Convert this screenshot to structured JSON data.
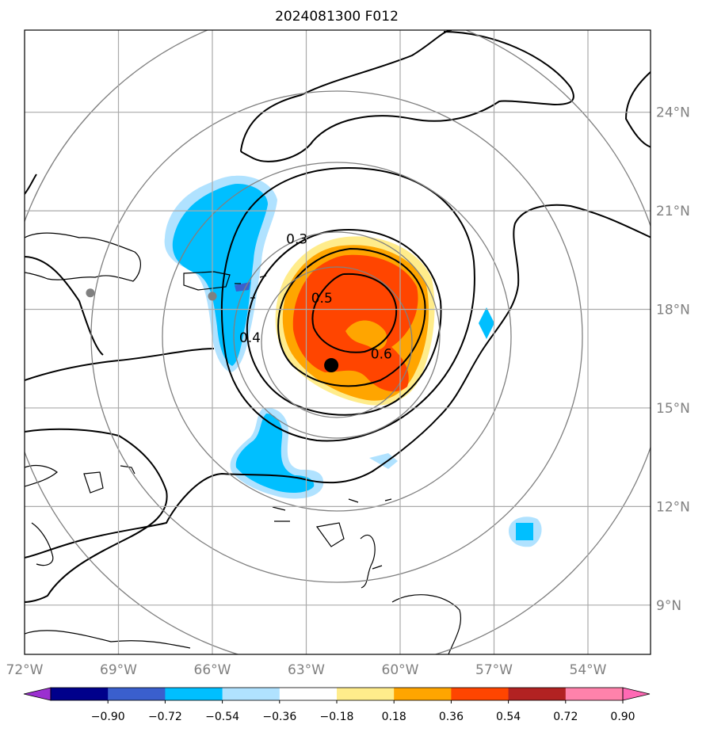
{
  "chart_data": {
    "type": "map",
    "title": "2024081300 F012",
    "lon_range": [
      -72,
      -52
    ],
    "lat_range": [
      7.5,
      26.5
    ],
    "lon_ticks": [
      {
        "value": -72,
        "label": "72°W"
      },
      {
        "value": -69,
        "label": "69°W"
      },
      {
        "value": -66,
        "label": "66°W"
      },
      {
        "value": -63,
        "label": "63°W"
      },
      {
        "value": -60,
        "label": "60°W"
      },
      {
        "value": -57,
        "label": "57°W"
      },
      {
        "value": -54,
        "label": "54°W"
      }
    ],
    "lat_ticks": [
      {
        "value": 9,
        "label": "9°N"
      },
      {
        "value": 12,
        "label": "12°N"
      },
      {
        "value": 15,
        "label": "15°N"
      },
      {
        "value": 18,
        "label": "18°N"
      },
      {
        "value": 21,
        "label": "21°N"
      },
      {
        "value": 24,
        "label": "24°N"
      }
    ],
    "storm_center": {
      "lon": -62.2,
      "lat": 16.3
    },
    "reference_points": [
      {
        "lon": -69.9,
        "lat": 18.5
      },
      {
        "lon": -66.0,
        "lat": 18.4
      }
    ],
    "range_rings_deg": [
      2,
      4,
      6,
      8,
      10
    ],
    "contour_labels": [
      {
        "text": "0.3",
        "lon": -63.3,
        "lat": 20.0
      },
      {
        "text": "0.5",
        "lon": -62.5,
        "lat": 18.2
      },
      {
        "text": "0.4",
        "lon": -64.8,
        "lat": 17.0
      },
      {
        "text": "0.6",
        "lon": -60.6,
        "lat": 16.5
      }
    ],
    "colorbar": {
      "ticks": [
        "−0.90",
        "−0.72",
        "−0.54",
        "−0.36",
        "−0.18",
        "0.18",
        "0.36",
        "0.54",
        "0.72",
        "0.90"
      ],
      "colors": [
        "#9b30d0",
        "#00008b",
        "#3a5fcd",
        "#00bfff",
        "#b0e2ff",
        "#ffffff",
        "#ffec8b",
        "#ffa500",
        "#ff4500",
        "#b22222",
        "#ff82ab",
        "#ff69b4"
      ],
      "extend": "both"
    }
  }
}
